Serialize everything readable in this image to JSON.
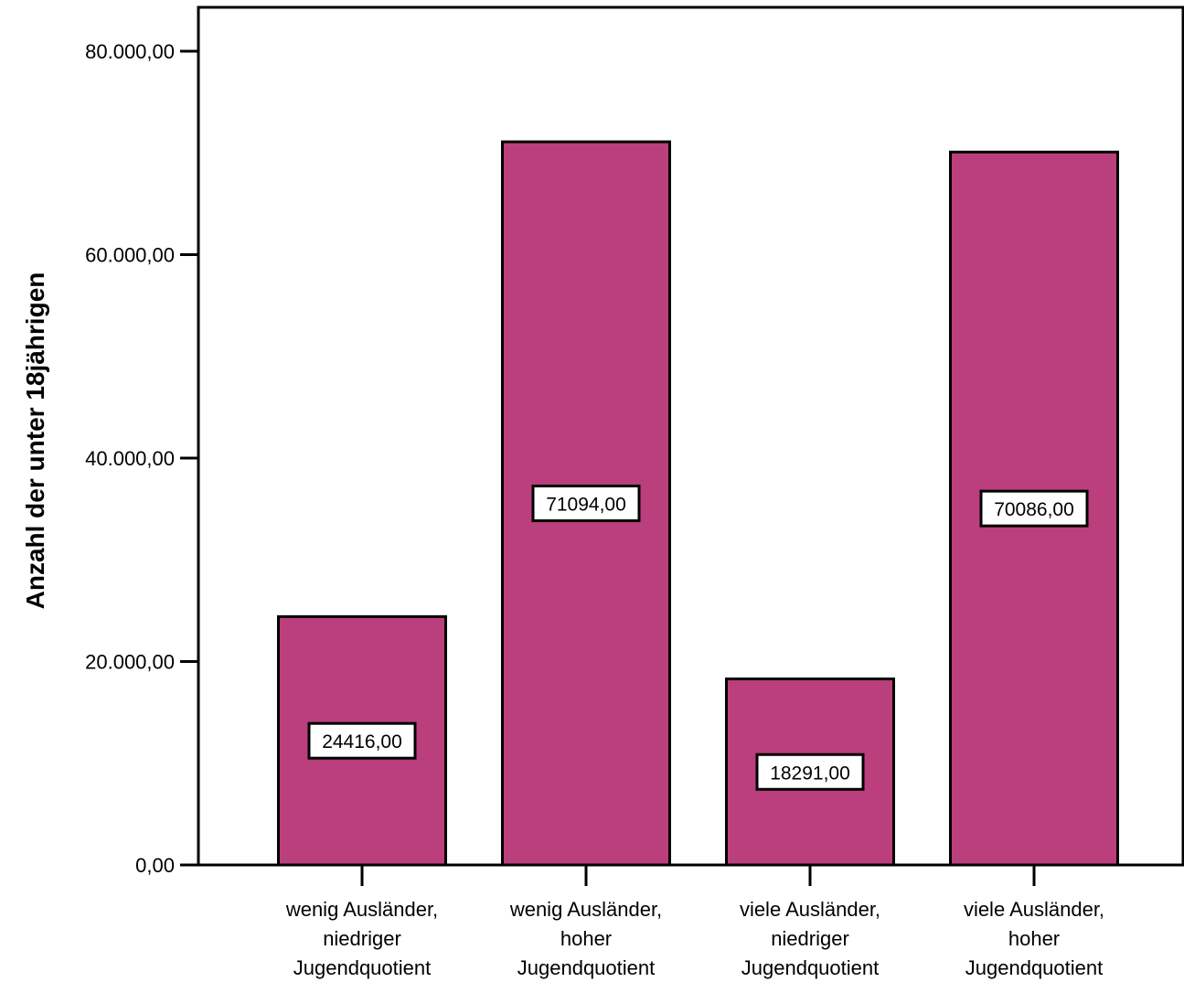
{
  "chart_data": {
    "type": "bar",
    "title": "",
    "xlabel": "",
    "ylabel": "Anzahl der unter 18jährigen",
    "ylim": [
      0,
      80000
    ],
    "yticks": [
      {
        "value": 0,
        "label": "0,00"
      },
      {
        "value": 20000,
        "label": "20.000,00"
      },
      {
        "value": 40000,
        "label": "40.000,00"
      },
      {
        "value": 60000,
        "label": "60.000,00"
      },
      {
        "value": 80000,
        "label": "80.000,00"
      }
    ],
    "categories": [
      [
        "wenig Ausländer,",
        "niedriger",
        "Jugendquotient"
      ],
      [
        "wenig Ausländer,",
        "hoher",
        "Jugendquotient"
      ],
      [
        "viele Ausländer,",
        "niedriger",
        "Jugendquotient"
      ],
      [
        "viele Ausländer,",
        "hoher",
        "Jugendquotient"
      ]
    ],
    "values": [
      24416,
      71094,
      18291,
      70086
    ],
    "data_labels": [
      "24416,00",
      "71094,00",
      "18291,00",
      "70086,00"
    ],
    "bar_color": "#BB3F7C",
    "grid": false,
    "legend": "none"
  }
}
